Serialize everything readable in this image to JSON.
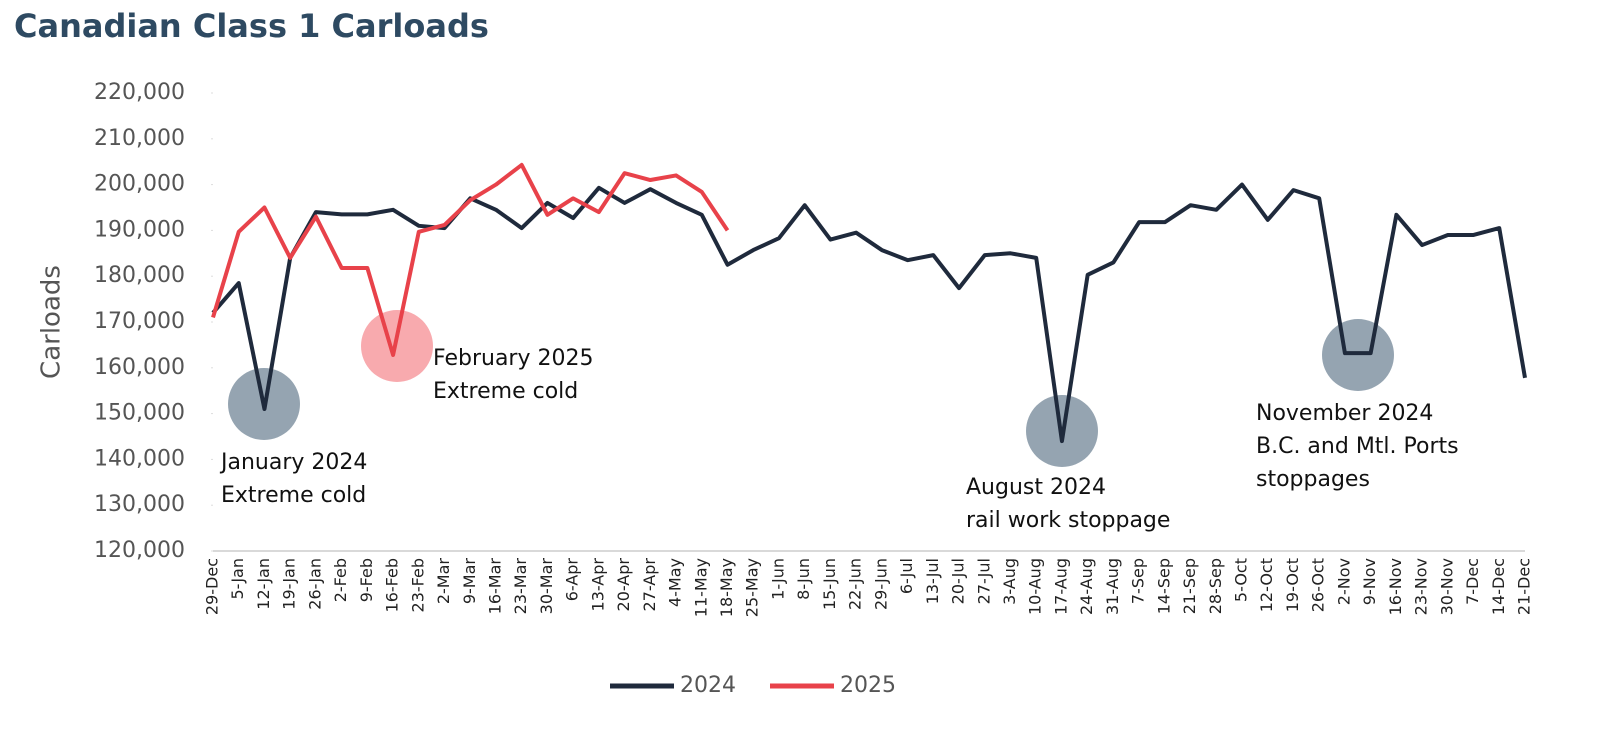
{
  "chart_data": {
    "type": "line",
    "title": "Canadian Class 1 Carloads",
    "ylabel": "Carloads",
    "categories": [
      "29-Dec",
      "5-Jan",
      "12-Jan",
      "19-Jan",
      "26-Jan",
      "2-Feb",
      "9-Feb",
      "16-Feb",
      "23-Feb",
      "2-Mar",
      "9-Mar",
      "16-Mar",
      "23-Mar",
      "30-Mar",
      "6-Apr",
      "13-Apr",
      "20-Apr",
      "27-Apr",
      "4-May",
      "11-May",
      "18-May",
      "25-May",
      "1-Jun",
      "8-Jun",
      "15-Jun",
      "22-Jun",
      "29-Jun",
      "6-Jul",
      "13-Jul",
      "20-Jul",
      "27-Jul",
      "3-Aug",
      "10-Aug",
      "17-Aug",
      "24-Aug",
      "31-Aug",
      "7-Sep",
      "14-Sep",
      "21-Sep",
      "28-Sep",
      "5-Oct",
      "12-Oct",
      "19-Oct",
      "26-Oct",
      "2-Nov",
      "9-Nov",
      "16-Nov",
      "23-Nov",
      "30-Nov",
      "7-Dec",
      "14-Dec",
      "21-Dec"
    ],
    "series": [
      {
        "name": "2024",
        "color": "#1f2a3c",
        "values": [
          172000,
          178500,
          151000,
          184000,
          194000,
          193500,
          193500,
          194500,
          191000,
          190500,
          197000,
          194500,
          190500,
          196000,
          192700,
          199300,
          196000,
          199000,
          196000,
          193400,
          182500,
          185700,
          188300,
          195500,
          188000,
          189500,
          185700,
          183500,
          184600,
          177400,
          184600,
          185000,
          184000,
          144000,
          180300,
          183000,
          191800,
          191800,
          195500,
          194500,
          200000,
          192300,
          198800,
          197000,
          163200,
          163200,
          193400,
          186800,
          189000,
          189000,
          190500,
          157800
        ]
      },
      {
        "name": "2025",
        "color": "#e8424a",
        "values": [
          171000,
          189700,
          195000,
          184000,
          193000,
          181800,
          181800,
          162800,
          189700,
          191200,
          196600,
          200000,
          204300,
          193400,
          197000,
          194000,
          202500,
          201000,
          202000,
          198400,
          190000,
          null,
          null,
          null,
          null,
          null,
          null,
          null,
          null,
          null,
          null,
          null,
          null,
          null,
          null,
          null,
          null,
          null,
          null,
          null,
          null,
          null,
          null,
          null,
          null,
          null,
          null,
          null,
          null,
          null,
          null,
          null
        ]
      }
    ],
    "ylim": [
      120000,
      220000
    ],
    "yticks": [
      {
        "value": 120000,
        "label": "120,000"
      },
      {
        "value": 130000,
        "label": "130,000"
      },
      {
        "value": 140000,
        "label": "140,000"
      },
      {
        "value": 150000,
        "label": "150,000"
      },
      {
        "value": 160000,
        "label": "160,000"
      },
      {
        "value": 170000,
        "label": "170,000"
      },
      {
        "value": 180000,
        "label": "180,000"
      },
      {
        "value": 190000,
        "label": "190,000"
      },
      {
        "value": 200000,
        "label": "200,000"
      },
      {
        "value": 210000,
        "label": "210,000"
      },
      {
        "value": 220000,
        "label": "220,000"
      }
    ],
    "legend": "bottom",
    "annotations": [
      {
        "lines": [
          "January 2024",
          "Extreme cold"
        ]
      },
      {
        "lines": [
          "February 2025",
          "Extreme cold"
        ]
      },
      {
        "lines": [
          "August 2024",
          "rail work stoppage"
        ]
      },
      {
        "lines": [
          "November 2024",
          "B.C. and Mtl. Ports",
          "stoppages"
        ]
      }
    ]
  }
}
